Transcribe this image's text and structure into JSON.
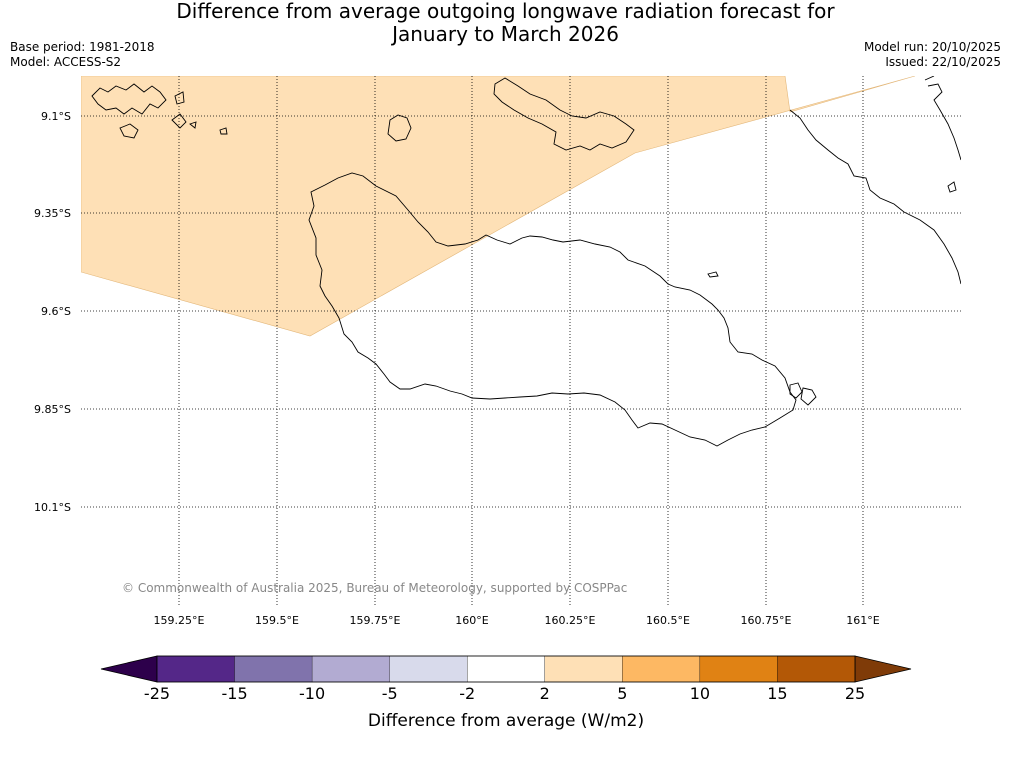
{
  "header": {
    "title_line1": "Difference from average outgoing longwave radiation forecast for",
    "title_line2": "January to March 2026",
    "base_period": "Base period: 1981-2018",
    "model": "Model: ACCESS-S2",
    "model_run": "Model run: 20/10/2025",
    "issued": "Issued: 22/10/2025"
  },
  "map": {
    "lat_labels": [
      "9.1°S",
      "9.35°S",
      "9.6°S",
      "9.85°S",
      "10.1°S"
    ],
    "lon_labels": [
      "159.25°E",
      "159.5°E",
      "159.75°E",
      "160°E",
      "160.25°E",
      "160.5°E",
      "160.75°E",
      "161°E"
    ],
    "copyright": "© Commonwealth of Australia 2025, Bureau of Meteorology, supported by COSPPac",
    "anomaly_region_color": "#fee0b6"
  },
  "colorbar": {
    "tick_labels": [
      "-25",
      "-15",
      "-10",
      "-5",
      "-2",
      "2",
      "5",
      "10",
      "15",
      "25"
    ],
    "colors": [
      "#542788",
      "#8073ac",
      "#b2abd2",
      "#d8daeb",
      "#ffffff",
      "#fee0b6",
      "#fdb863",
      "#e08214",
      "#b35806"
    ],
    "under_color": "#2d004b",
    "over_color": "#7f3b08",
    "label": "Difference from average (W/m2)"
  }
}
